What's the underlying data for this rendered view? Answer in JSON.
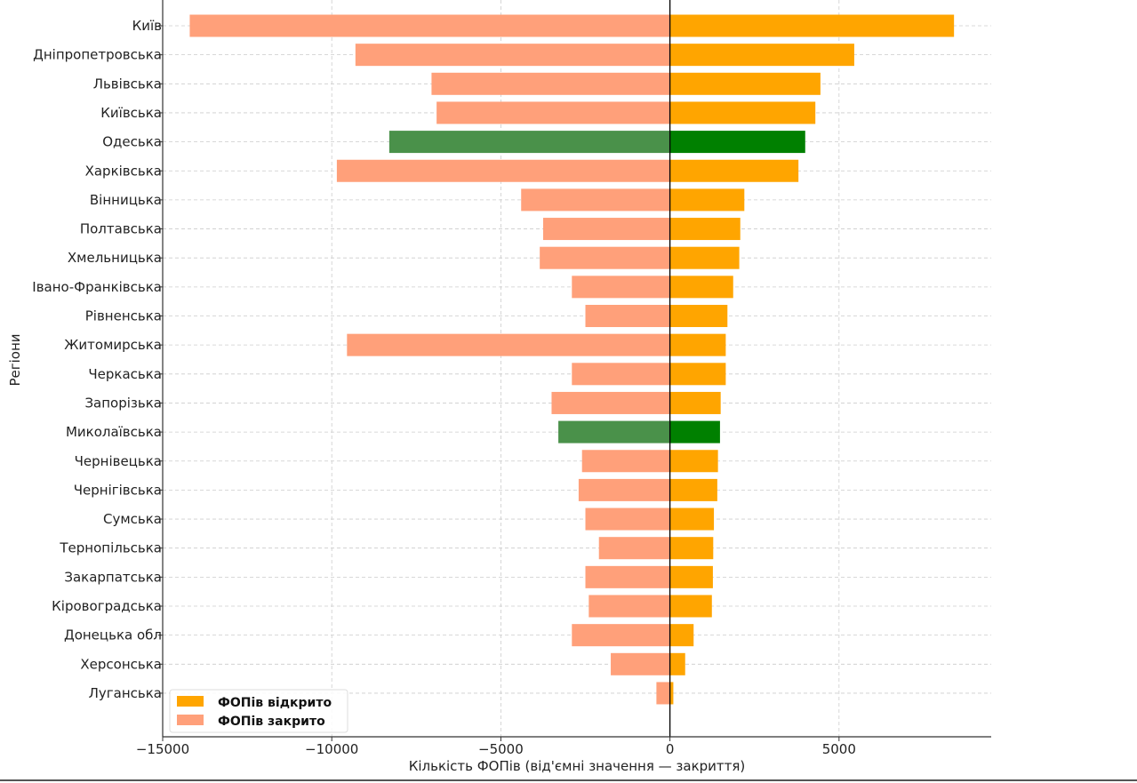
{
  "chart_data": {
    "type": "bar",
    "orientation": "horizontal",
    "xlabel": "Кількість ФОПів (від'ємні значення — закриття)",
    "ylabel": "Регіони",
    "xlim": [
      -15000,
      9500
    ],
    "x_ticks": [
      -15000,
      -10000,
      -5000,
      0,
      5000
    ],
    "x_tick_labels": [
      "−15000",
      "−10000",
      "−5000",
      "0",
      "5000"
    ],
    "grid": true,
    "legend_position": "bottom-left",
    "categories": [
      "Київ",
      "Дніпропетровська",
      "Львівська",
      "Київська",
      "Одеська",
      "Харківська",
      "Вінницька",
      "Полтавська",
      "Хмельницька",
      "Івано-Франківська",
      "Рівненська",
      "Житомирська",
      "Черкаська",
      "Запорізька",
      "Миколаївська",
      "Чернівецька",
      "Чернігівська",
      "Сумська",
      "Тернопільська",
      "Закарпатська",
      "Кіровоградська",
      "Донецька обл",
      "Херсонська",
      "Луганська"
    ],
    "series": [
      {
        "name": "ФОПів відкрито",
        "color": "#FFA500",
        "values": [
          8400,
          5450,
          4450,
          4300,
          4000,
          3800,
          2200,
          2080,
          2050,
          1870,
          1700,
          1650,
          1650,
          1500,
          1480,
          1420,
          1400,
          1300,
          1280,
          1270,
          1240,
          700,
          450,
          100
        ]
      },
      {
        "name": "ФОПів закрито",
        "color": "#FFA07A",
        "values": [
          -14200,
          -9300,
          -7050,
          -6900,
          -8300,
          -9850,
          -4400,
          -3750,
          -3850,
          -2900,
          -2500,
          -9550,
          -2900,
          -3500,
          -3300,
          -2600,
          -2700,
          -2500,
          -2100,
          -2500,
          -2400,
          -2900,
          -1750,
          -400
        ]
      }
    ],
    "highlight_color_open": "#008000",
    "highlight_color_closed": "#4A914A",
    "highlighted_categories": [
      "Одеська",
      "Миколаївська"
    ]
  }
}
